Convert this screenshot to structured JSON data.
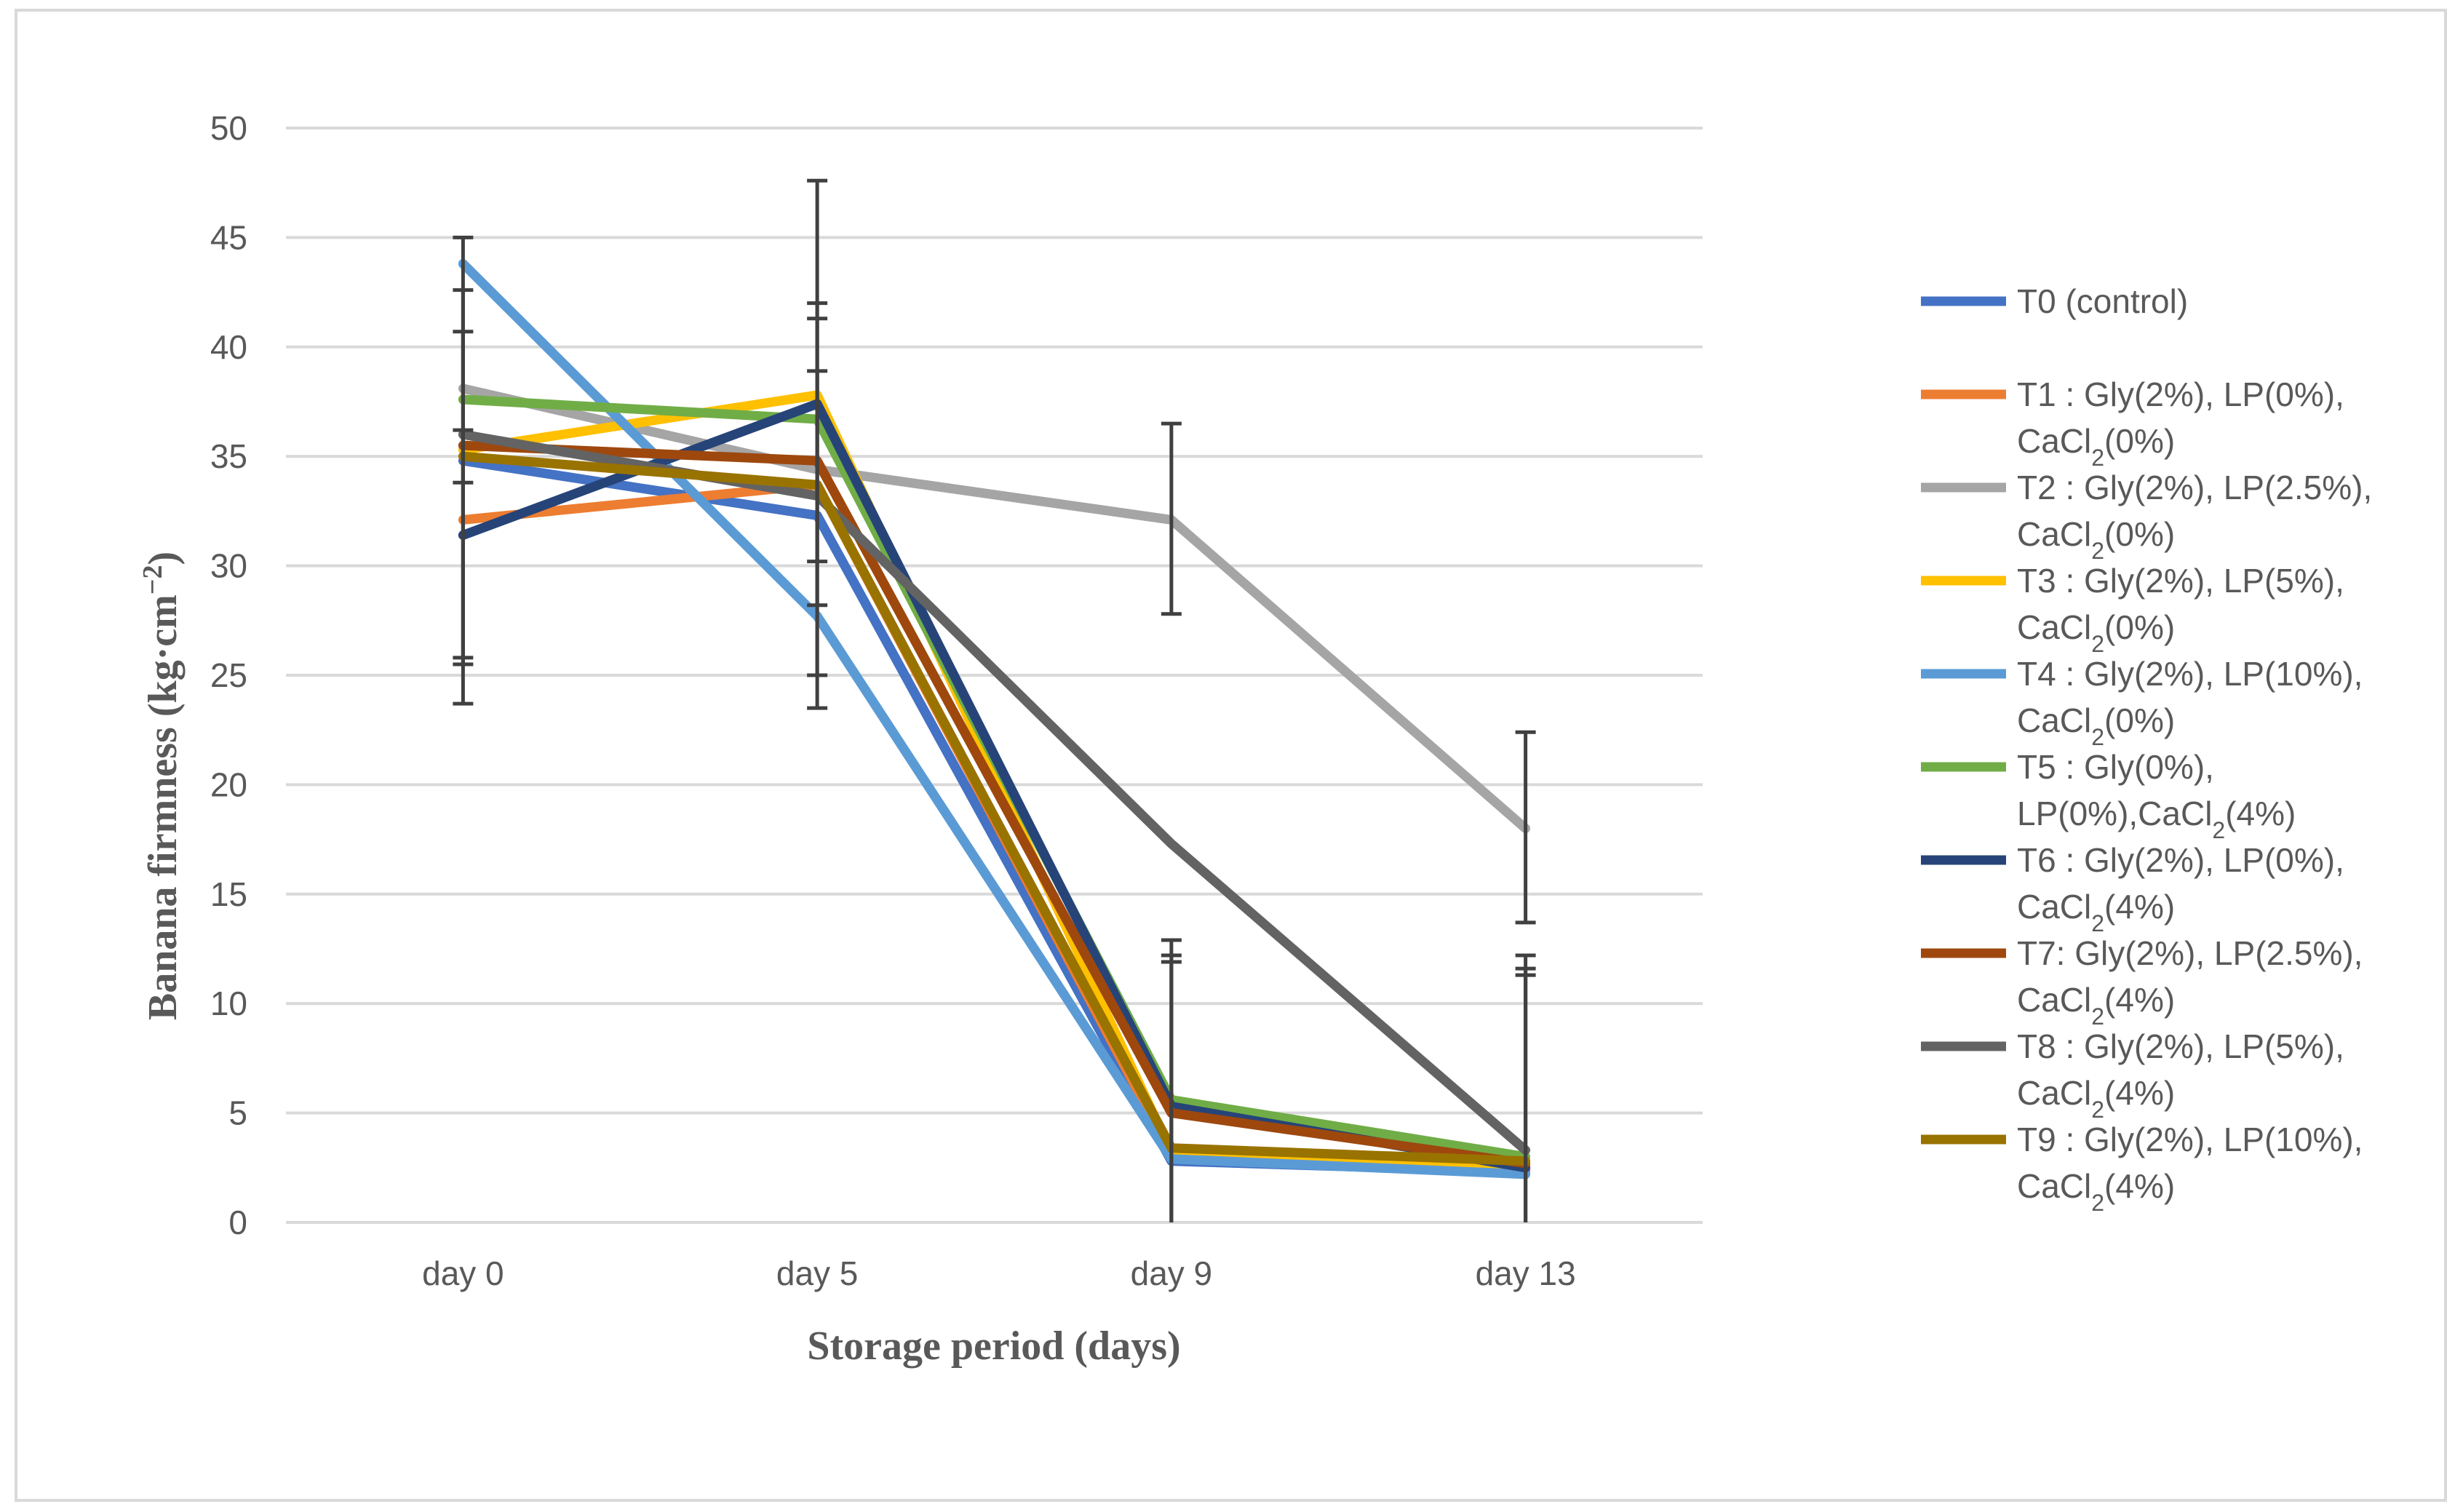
{
  "chart_data": {
    "type": "line",
    "title": "",
    "xlabel": "Storage period (days)",
    "ylabel": "Banana firmness (kg·cm⁻²)",
    "ylabel_parts": {
      "main": "Banana firmness (kg·cm",
      "sup": "−2",
      "end": ")"
    },
    "categories": [
      "day 0",
      "day 5",
      "day 9",
      "day 13"
    ],
    "ylim": [
      0,
      50
    ],
    "yticks": [
      0,
      5,
      10,
      15,
      20,
      25,
      30,
      35,
      40,
      45,
      50
    ],
    "grid": true,
    "legend_position": "right",
    "series": [
      {
        "name": "T0 (control)",
        "legend_lines": [
          {
            "t": "T0 (control)"
          }
        ],
        "color": "#4472C4",
        "values": [
          34.8,
          32.3,
          2.8,
          2.3
        ]
      },
      {
        "name": "T1 : Gly(2%), LP(0%), CaCl2(0%)",
        "legend_lines": [
          {
            "t": "T1 : Gly(2%), LP(0%),"
          },
          {
            "t": "CaCl",
            "sub": "2",
            "rest": "(0%)"
          }
        ],
        "color": "#ED7D31",
        "values": [
          32.1,
          33.7,
          3.1,
          2.4
        ]
      },
      {
        "name": "T2 : Gly(2%), LP(2.5%), CaCl2(0%)",
        "legend_lines": [
          {
            "t": "T2 : Gly(2%), LP(2.5%),"
          },
          {
            "t": "CaCl",
            "sub": "2",
            "rest": "(0%)"
          }
        ],
        "color": "#A5A5A5",
        "values": [
          38.1,
          34.4,
          32.1,
          18.0
        ]
      },
      {
        "name": "T3 : Gly(2%), LP(5%), CaCl2(0%)",
        "legend_lines": [
          {
            "t": "T3 : Gly(2%), LP(5%),"
          },
          {
            "t": "CaCl",
            "sub": "2",
            "rest": "(0%)"
          }
        ],
        "color": "#FFC000",
        "values": [
          35.3,
          37.8,
          3.2,
          2.6
        ]
      },
      {
        "name": "T4 : Gly(2%), LP(10%), CaCl2(0%)",
        "legend_lines": [
          {
            "t": "T4 : Gly(2%), LP(10%),"
          },
          {
            "t": "CaCl",
            "sub": "2",
            "rest": "(0%)"
          }
        ],
        "color": "#5B9BD5",
        "values": [
          43.8,
          27.7,
          2.9,
          2.2
        ]
      },
      {
        "name": "T5 : Gly(0%), LP(0%),CaCl2(4%)",
        "legend_lines": [
          {
            "t": "T5 : Gly(0%),"
          },
          {
            "t": "LP(0%),CaCl",
            "sub": "2",
            "rest": "(4%)"
          }
        ],
        "color": "#70AD47",
        "values": [
          37.6,
          36.7,
          5.6,
          3.0
        ]
      },
      {
        "name": "T6 : Gly(2%), LP(0%), CaCl2(4%)",
        "legend_lines": [
          {
            "t": "T6 : Gly(2%), LP(0%),"
          },
          {
            "t": "CaCl",
            "sub": "2",
            "rest": "(4%)"
          }
        ],
        "color": "#264478",
        "values": [
          31.4,
          37.4,
          5.3,
          2.5
        ]
      },
      {
        "name": "T7: Gly(2%), LP(2.5%), CaCl2(4%)",
        "legend_lines": [
          {
            "t": "T7: Gly(2%), LP(2.5%),"
          },
          {
            "t": "CaCl",
            "sub": "2",
            "rest": "(4%)"
          }
        ],
        "color": "#9E480E",
        "values": [
          35.5,
          34.8,
          5.0,
          2.7
        ]
      },
      {
        "name": "T8 : Gly(2%), LP(5%), CaCl2(4%)",
        "legend_lines": [
          {
            "t": "T8 : Gly(2%), LP(5%),"
          },
          {
            "t": "CaCl",
            "sub": "2",
            "rest": "(4%)"
          }
        ],
        "color": "#636363",
        "values": [
          36.0,
          33.2,
          17.3,
          3.3
        ]
      },
      {
        "name": "T9 : Gly(2%), LP(10%), CaCl2(4%)",
        "legend_lines": [
          {
            "t": "T9 : Gly(2%), LP(10%),"
          },
          {
            "t": "CaCl",
            "sub": "2",
            "rest": "(4%)"
          }
        ],
        "color": "#997300",
        "values": [
          35.0,
          33.7,
          3.4,
          2.8
        ]
      }
    ],
    "error_bars": [
      {
        "category": "day 0",
        "intervals": [
          [
            23.7,
            45.0
          ],
          [
            25.5,
            42.6
          ],
          [
            25.8,
            40.7
          ],
          [
            33.8,
            36.2
          ]
        ]
      },
      {
        "category": "day 5",
        "intervals": [
          [
            23.5,
            47.6
          ],
          [
            25.0,
            42.0
          ],
          [
            28.2,
            41.3
          ],
          [
            30.2,
            38.9
          ]
        ]
      },
      {
        "category": "day 9",
        "intervals": [
          [
            27.8,
            36.5
          ],
          [
            0,
            12.9
          ],
          [
            0,
            12.2
          ],
          [
            0,
            11.9
          ]
        ]
      },
      {
        "category": "day 13",
        "intervals": [
          [
            13.7,
            22.4
          ],
          [
            0,
            12.2
          ],
          [
            0,
            11.6
          ],
          [
            0,
            11.3
          ]
        ]
      }
    ]
  }
}
